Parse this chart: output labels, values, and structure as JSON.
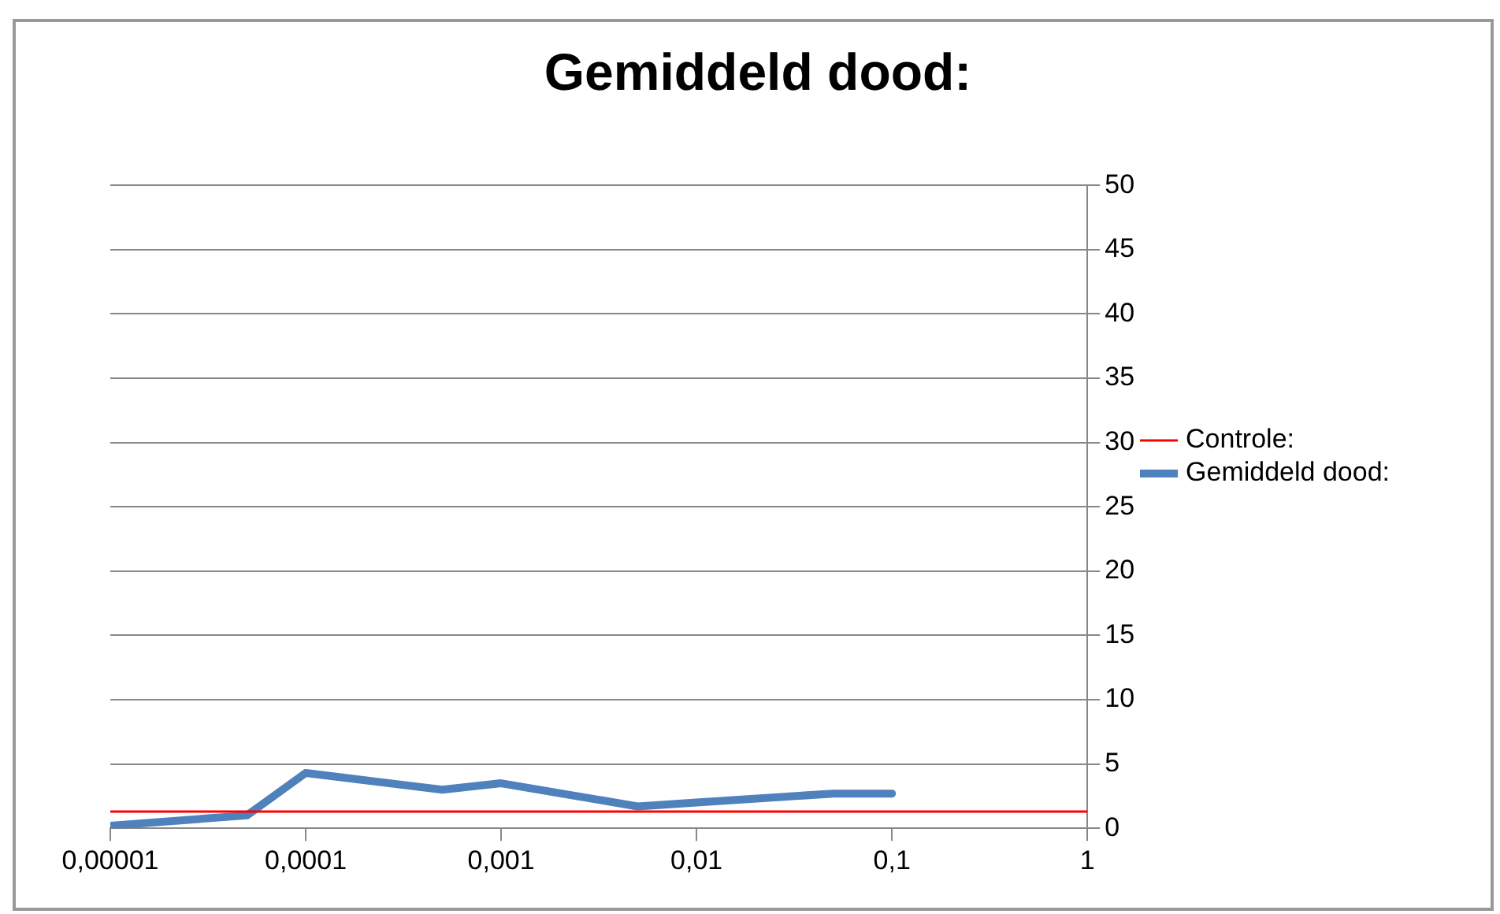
{
  "chart_data": {
    "type": "line",
    "title": "Gemiddeld dood:",
    "log": "x",
    "xlim": [
      1e-05,
      1
    ],
    "xticks": [
      {
        "value": 1e-05,
        "label": "0,00001"
      },
      {
        "value": 0.0001,
        "label": "0,0001"
      },
      {
        "value": 0.001,
        "label": "0,001"
      },
      {
        "value": 0.01,
        "label": "0,01"
      },
      {
        "value": 0.1,
        "label": "0,1"
      },
      1
    ],
    "ylim": [
      0,
      50
    ],
    "yticks": [
      0,
      5,
      10,
      15,
      20,
      25,
      30,
      35,
      40,
      45,
      50
    ],
    "grid": "y",
    "legend": "right",
    "marker": "none",
    "line_style": "solid",
    "series": [
      {
        "name": "Controle:",
        "color": "#ff0000",
        "x": [
          1e-05,
          1
        ],
        "values": [
          1.3,
          1.3
        ]
      },
      {
        "name": "Gemiddeld dood:",
        "color": "#4f81bd",
        "x": [
          1e-05,
          5e-05,
          0.0001,
          0.0005,
          0.001,
          0.005,
          0.01,
          0.05,
          0.1
        ],
        "values": [
          0.2,
          1,
          4.3,
          3,
          3.5,
          1.7,
          2,
          2.7,
          2.7
        ]
      }
    ]
  }
}
